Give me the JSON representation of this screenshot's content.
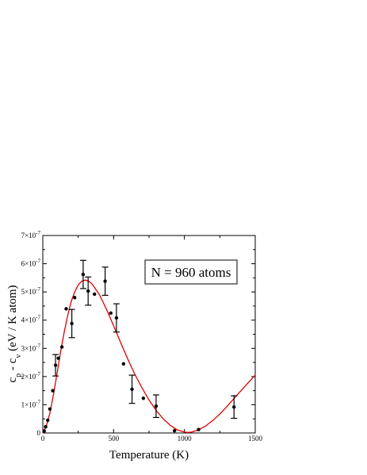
{
  "chart_data": {
    "type": "scatter",
    "xlabel": "Temperature  (K)",
    "ylabel": "c_p - c_v  (eV / K atom)",
    "ylabel_parts": {
      "cp": "c",
      "cp_sub": "p",
      "dash": " - ",
      "cv": "c",
      "cv_sub": "v",
      "units": "  (eV / K atom)"
    },
    "xlim": [
      0,
      1500
    ],
    "ylim": [
      0,
      7e-07
    ],
    "x_ticks": [
      {
        "value": 0,
        "label": "0"
      },
      {
        "value": 500,
        "label": "500"
      },
      {
        "value": 1000,
        "label": "1000"
      },
      {
        "value": 1500,
        "label": "1500"
      }
    ],
    "y_ticks": [
      {
        "value": 0,
        "label": "0"
      },
      {
        "value": 1e-07,
        "mant": "1×10",
        "exp": "-7"
      },
      {
        "value": 2e-07,
        "mant": "2×10",
        "exp": "-7"
      },
      {
        "value": 3e-07,
        "mant": "3×10",
        "exp": "-7"
      },
      {
        "value": 4e-07,
        "mant": "4×10",
        "exp": "-7"
      },
      {
        "value": 5e-07,
        "mant": "5×10",
        "exp": "-7"
      },
      {
        "value": 6e-07,
        "mant": "6×10",
        "exp": "-7"
      },
      {
        "value": 7e-07,
        "mant": "7×10",
        "exp": "-7"
      }
    ],
    "annotation": "N  =  960 atoms",
    "series": [
      {
        "kind": "points",
        "color": "#000000",
        "points": [
          {
            "x": 10,
            "y": 7e-09
          },
          {
            "x": 20,
            "y": 2.2e-08
          },
          {
            "x": 35,
            "y": 4.5e-08
          },
          {
            "x": 50,
            "y": 8.5e-08
          },
          {
            "x": 70,
            "y": 1.5e-07
          },
          {
            "x": 90,
            "y": 2.4e-07,
            "err": 3.8e-08
          },
          {
            "x": 110,
            "y": 2.65e-07
          },
          {
            "x": 135,
            "y": 3.05e-07
          },
          {
            "x": 165,
            "y": 4.4e-07
          },
          {
            "x": 205,
            "y": 3.88e-07,
            "err": 5e-08
          },
          {
            "x": 225,
            "y": 4.8e-07
          },
          {
            "x": 285,
            "y": 5.62e-07,
            "err": 5e-08
          },
          {
            "x": 320,
            "y": 5.03e-07,
            "err": 5e-08
          },
          {
            "x": 365,
            "y": 4.92e-07
          },
          {
            "x": 440,
            "y": 5.38e-07,
            "err": 5e-08
          },
          {
            "x": 480,
            "y": 4.25e-07
          },
          {
            "x": 520,
            "y": 4.08e-07,
            "err": 5e-08
          },
          {
            "x": 570,
            "y": 2.45e-07
          },
          {
            "x": 630,
            "y": 1.55e-07,
            "err": 5e-08
          },
          {
            "x": 710,
            "y": 1.23e-07
          },
          {
            "x": 800,
            "y": 9.5e-08,
            "err": 4e-08
          },
          {
            "x": 930,
            "y": 8e-09
          },
          {
            "x": 1100,
            "y": 1.2e-08
          },
          {
            "x": 1350,
            "y": 9.2e-08,
            "err": 4e-08
          }
        ]
      },
      {
        "kind": "line",
        "color": "#dd0000",
        "points": [
          {
            "x": 0,
            "y": 0.0
          },
          {
            "x": 25,
            "y": 2.5e-08
          },
          {
            "x": 50,
            "y": 7e-08
          },
          {
            "x": 75,
            "y": 1.35e-07
          },
          {
            "x": 100,
            "y": 2.1e-07
          },
          {
            "x": 125,
            "y": 2.85e-07
          },
          {
            "x": 150,
            "y": 3.55e-07
          },
          {
            "x": 175,
            "y": 4.15e-07
          },
          {
            "x": 200,
            "y": 4.65e-07
          },
          {
            "x": 225,
            "y": 5e-07
          },
          {
            "x": 250,
            "y": 5.25e-07
          },
          {
            "x": 275,
            "y": 5.38e-07
          },
          {
            "x": 300,
            "y": 5.42e-07
          },
          {
            "x": 325,
            "y": 5.38e-07
          },
          {
            "x": 350,
            "y": 5.27e-07
          },
          {
            "x": 400,
            "y": 4.9e-07
          },
          {
            "x": 450,
            "y": 4.38e-07
          },
          {
            "x": 500,
            "y": 3.8e-07
          },
          {
            "x": 550,
            "y": 3.2e-07
          },
          {
            "x": 600,
            "y": 2.62e-07
          },
          {
            "x": 650,
            "y": 2.08e-07
          },
          {
            "x": 700,
            "y": 1.6e-07
          },
          {
            "x": 750,
            "y": 1.17e-07
          },
          {
            "x": 800,
            "y": 8e-08
          },
          {
            "x": 850,
            "y": 5e-08
          },
          {
            "x": 900,
            "y": 2.7e-08
          },
          {
            "x": 950,
            "y": 1.1e-08
          },
          {
            "x": 1000,
            "y": 3e-09
          },
          {
            "x": 1025,
            "y": 2e-09
          },
          {
            "x": 1050,
            "y": 3e-09
          },
          {
            "x": 1100,
            "y": 1.1e-08
          },
          {
            "x": 1150,
            "y": 2.5e-08
          },
          {
            "x": 1200,
            "y": 4.4e-08
          },
          {
            "x": 1250,
            "y": 6.7e-08
          },
          {
            "x": 1300,
            "y": 9.4e-08
          },
          {
            "x": 1350,
            "y": 1.22e-07
          },
          {
            "x": 1400,
            "y": 1.5e-07
          },
          {
            "x": 1450,
            "y": 1.78e-07
          },
          {
            "x": 1500,
            "y": 2.05e-07
          }
        ]
      }
    ],
    "grid": false,
    "legend": "none"
  }
}
